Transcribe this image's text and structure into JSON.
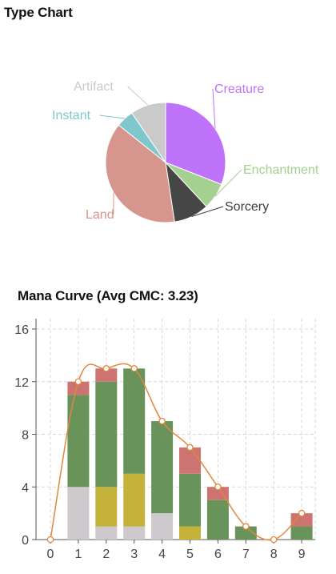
{
  "type_chart": {
    "title": "Type Chart",
    "chart_data": {
      "type": "pie",
      "slices": [
        {
          "label": "Creature",
          "value": 13,
          "color": "#bf73fb"
        },
        {
          "label": "Enchantment",
          "value": 3,
          "color": "#a4d18f"
        },
        {
          "label": "Sorcery",
          "value": 4,
          "color": "#464646"
        },
        {
          "label": "Land",
          "value": 16,
          "color": "#d6958d"
        },
        {
          "label": "Instant",
          "value": 2,
          "color": "#80c7cd"
        },
        {
          "label": "Artifact",
          "value": 4,
          "color": "#cacaca"
        }
      ]
    }
  },
  "mana_curve": {
    "title": "Mana Curve (Avg CMC: 3.23)",
    "chart_data": {
      "type": "bar",
      "stacked": true,
      "categories": [
        "0",
        "1",
        "2",
        "3",
        "4",
        "5",
        "6",
        "7",
        "8",
        "9"
      ],
      "series": [
        {
          "key": "gray",
          "color": "#cdc9cc",
          "values": [
            0,
            4,
            1,
            1,
            2,
            0,
            0,
            0,
            0,
            0
          ]
        },
        {
          "key": "yellow",
          "color": "#c4b23a",
          "values": [
            0,
            0,
            3,
            4,
            0,
            1,
            0,
            0,
            0,
            0
          ]
        },
        {
          "key": "green",
          "color": "#68935b",
          "values": [
            0,
            7,
            8,
            8,
            7,
            4,
            3,
            1,
            0,
            1
          ]
        },
        {
          "key": "red",
          "color": "#cd7372",
          "values": [
            0,
            1,
            1,
            0,
            0,
            2,
            1,
            0,
            0,
            1
          ]
        }
      ],
      "line": {
        "color": "#e0883c",
        "values": [
          0,
          12,
          13,
          13,
          9,
          7,
          4,
          1,
          0,
          2
        ]
      },
      "yticks": [
        0,
        4,
        8,
        12,
        16
      ],
      "ylim": [
        0,
        16
      ],
      "grid": true
    }
  }
}
